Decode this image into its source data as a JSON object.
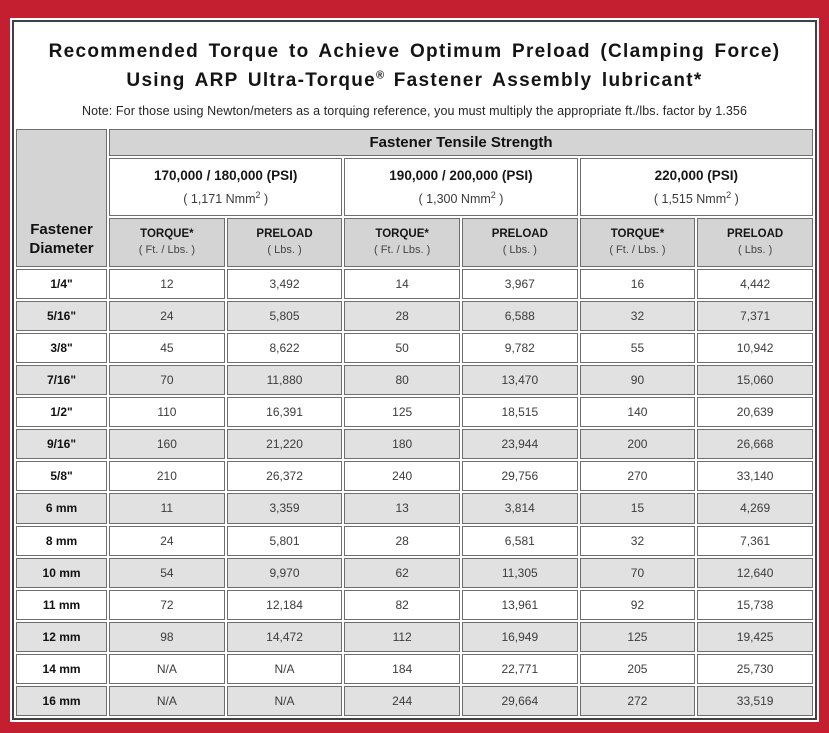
{
  "title": {
    "line1": "Recommended Torque to Achieve Optimum Preload (Clamping Force)",
    "line2_pre": "Using ARP Ultra-Torque",
    "line2_sup": "®",
    "line2_post": " Fastener Assembly lubricant*",
    "note": "Note: For those using Newton/meters as a torquing reference, you must multiply the appropriate ft./lbs. factor by 1.356"
  },
  "table": {
    "corner_line1": "Fastener",
    "corner_line2": "Diameter",
    "main_header": "Fastener Tensile Strength",
    "strength_groups": [
      {
        "psi": "170,000 / 180,000 (PSI)",
        "nmm_pre": "( 1,171 Nmm",
        "nmm_sup": "2",
        "nmm_post": " )"
      },
      {
        "psi": "190,000 / 200,000 (PSI)",
        "nmm_pre": "( 1,300 Nmm",
        "nmm_sup": "2",
        "nmm_post": " )"
      },
      {
        "psi": "220,000 (PSI)",
        "nmm_pre": "( 1,515 Nmm",
        "nmm_sup": "2",
        "nmm_post": " )"
      }
    ],
    "col_headers": {
      "torque_label": "TORQUE*",
      "torque_unit": "( Ft. / Lbs. )",
      "preload_label": "PRELOAD",
      "preload_unit": "( Lbs. )"
    },
    "rows": [
      {
        "diameter": "1/4\"",
        "values": [
          "12",
          "3,492",
          "14",
          "3,967",
          "16",
          "4,442"
        ]
      },
      {
        "diameter": "5/16\"",
        "values": [
          "24",
          "5,805",
          "28",
          "6,588",
          "32",
          "7,371"
        ]
      },
      {
        "diameter": "3/8\"",
        "values": [
          "45",
          "8,622",
          "50",
          "9,782",
          "55",
          "10,942"
        ]
      },
      {
        "diameter": "7/16\"",
        "values": [
          "70",
          "11,880",
          "80",
          "13,470",
          "90",
          "15,060"
        ]
      },
      {
        "diameter": "1/2\"",
        "values": [
          "110",
          "16,391",
          "125",
          "18,515",
          "140",
          "20,639"
        ]
      },
      {
        "diameter": "9/16\"",
        "values": [
          "160",
          "21,220",
          "180",
          "23,944",
          "200",
          "26,668"
        ]
      },
      {
        "diameter": "5/8\"",
        "values": [
          "210",
          "26,372",
          "240",
          "29,756",
          "270",
          "33,140"
        ]
      },
      {
        "diameter": "6 mm",
        "values": [
          "11",
          "3,359",
          "13",
          "3,814",
          "15",
          "4,269"
        ]
      },
      {
        "diameter": "8 mm",
        "values": [
          "24",
          "5,801",
          "28",
          "6,581",
          "32",
          "7,361"
        ]
      },
      {
        "diameter": "10 mm",
        "values": [
          "54",
          "9,970",
          "62",
          "11,305",
          "70",
          "12,640"
        ]
      },
      {
        "diameter": "11 mm",
        "values": [
          "72",
          "12,184",
          "82",
          "13,961",
          "92",
          "15,738"
        ]
      },
      {
        "diameter": "12 mm",
        "values": [
          "98",
          "14,472",
          "112",
          "16,949",
          "125",
          "19,425"
        ]
      },
      {
        "diameter": "14 mm",
        "values": [
          "N/A",
          "N/A",
          "184",
          "22,771",
          "205",
          "25,730"
        ]
      },
      {
        "diameter": "16 mm",
        "values": [
          "N/A",
          "N/A",
          "244",
          "29,664",
          "272",
          "33,519"
        ]
      }
    ]
  },
  "colors": {
    "border_red": "#c41f30",
    "panel_border": "#414141",
    "header_gray": "#d4d4d4",
    "row_alt_gray": "#e1e1e1",
    "cell_border": "#6e6e6e"
  }
}
